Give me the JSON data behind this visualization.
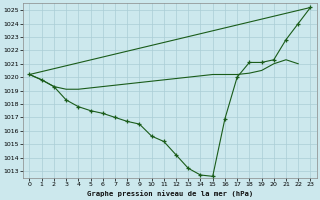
{
  "bg_color": "#cce8ed",
  "grid_color": "#aacdd5",
  "line_color": "#1a5c1a",
  "title": "Graphe pression niveau de la mer (hPa)",
  "xlim": [
    -0.5,
    23.5
  ],
  "ylim": [
    1012.5,
    1025.5
  ],
  "yticks": [
    1013,
    1014,
    1015,
    1016,
    1017,
    1018,
    1019,
    1020,
    1021,
    1022,
    1023,
    1024,
    1025
  ],
  "xticks": [
    0,
    1,
    2,
    3,
    4,
    5,
    6,
    7,
    8,
    9,
    10,
    11,
    12,
    13,
    14,
    15,
    16,
    17,
    18,
    19,
    20,
    21,
    22,
    23
  ],
  "line_straight": {
    "x": [
      0,
      23
    ],
    "y": [
      1020.2,
      1025.2
    ]
  },
  "line_flat": {
    "x": [
      0,
      1,
      2,
      3,
      4,
      5,
      6,
      7,
      8,
      9,
      10,
      11,
      12,
      13,
      14,
      15,
      16,
      17,
      18,
      19,
      20,
      21,
      22
    ],
    "y": [
      1020.2,
      1019.8,
      1019.3,
      1019.1,
      1019.1,
      1019.2,
      1019.3,
      1019.4,
      1019.5,
      1019.6,
      1019.7,
      1019.8,
      1019.9,
      1020.0,
      1020.1,
      1020.2,
      1020.2,
      1020.2,
      1020.3,
      1020.5,
      1021.0,
      1021.3,
      1021.0
    ]
  },
  "line_curve": {
    "x": [
      0,
      1,
      2,
      3,
      4,
      5,
      6,
      7,
      8,
      9,
      10,
      11,
      12,
      13,
      14,
      15,
      16,
      17,
      18,
      19,
      20,
      21,
      22,
      23
    ],
    "y": [
      1020.2,
      1019.8,
      1019.3,
      1018.3,
      1017.8,
      1017.5,
      1017.3,
      1017.0,
      1016.7,
      1016.5,
      1015.6,
      1015.2,
      1014.2,
      1013.2,
      1012.7,
      1012.6,
      1016.9,
      1020.0,
      1021.1,
      1021.1,
      1021.3,
      1022.8,
      1024.0,
      1025.2
    ]
  }
}
